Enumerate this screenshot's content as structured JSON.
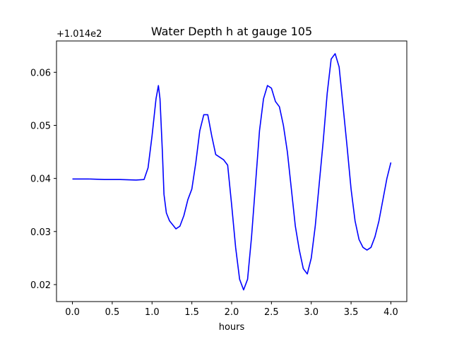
{
  "chart_data": {
    "type": "line",
    "title": "Water Depth h at gauge 105",
    "xlabel": "hours",
    "ylabel": "",
    "offset_label": "+1.014e2",
    "xlim": [
      -0.2,
      4.2
    ],
    "ylim": [
      0.0168,
      0.0659
    ],
    "x_ticks": [
      0.0,
      0.5,
      1.0,
      1.5,
      2.0,
      2.5,
      3.0,
      3.5,
      4.0
    ],
    "x_tick_labels": [
      "0.0",
      "0.5",
      "1.0",
      "1.5",
      "2.0",
      "2.5",
      "3.0",
      "3.5",
      "4.0"
    ],
    "y_ticks": [
      0.02,
      0.03,
      0.04,
      0.05,
      0.06
    ],
    "y_tick_labels": [
      "0.02",
      "0.03",
      "0.04",
      "0.05",
      "0.06"
    ],
    "grid": false,
    "series": [
      {
        "color": "#0000ff",
        "x": [
          0.0,
          0.2,
          0.4,
          0.6,
          0.8,
          0.9,
          0.95,
          1.0,
          1.05,
          1.08,
          1.1,
          1.13,
          1.15,
          1.18,
          1.22,
          1.3,
          1.35,
          1.4,
          1.45,
          1.5,
          1.55,
          1.6,
          1.65,
          1.7,
          1.75,
          1.8,
          1.85,
          1.9,
          1.95,
          2.0,
          2.05,
          2.1,
          2.15,
          2.2,
          2.25,
          2.3,
          2.35,
          2.4,
          2.45,
          2.5,
          2.55,
          2.6,
          2.65,
          2.7,
          2.75,
          2.8,
          2.85,
          2.9,
          2.95,
          3.0,
          3.05,
          3.1,
          3.15,
          3.2,
          3.25,
          3.3,
          3.35,
          3.4,
          3.45,
          3.5,
          3.55,
          3.6,
          3.65,
          3.7,
          3.75,
          3.8,
          3.85,
          3.9,
          3.95,
          4.0
        ],
        "y": [
          0.0399,
          0.0399,
          0.0398,
          0.0398,
          0.0397,
          0.0398,
          0.042,
          0.048,
          0.055,
          0.0575,
          0.055,
          0.045,
          0.037,
          0.0335,
          0.032,
          0.0305,
          0.031,
          0.033,
          0.036,
          0.038,
          0.043,
          0.049,
          0.052,
          0.052,
          0.048,
          0.0445,
          0.044,
          0.0435,
          0.0425,
          0.035,
          0.027,
          0.021,
          0.019,
          0.021,
          0.029,
          0.039,
          0.049,
          0.055,
          0.0575,
          0.057,
          0.0545,
          0.0535,
          0.05,
          0.045,
          0.038,
          0.031,
          0.0265,
          0.023,
          0.022,
          0.025,
          0.031,
          0.039,
          0.047,
          0.056,
          0.0625,
          0.0635,
          0.061,
          0.0535,
          0.046,
          0.038,
          0.032,
          0.0285,
          0.027,
          0.0265,
          0.027,
          0.029,
          0.032,
          0.036,
          0.04,
          0.043
        ]
      }
    ]
  }
}
